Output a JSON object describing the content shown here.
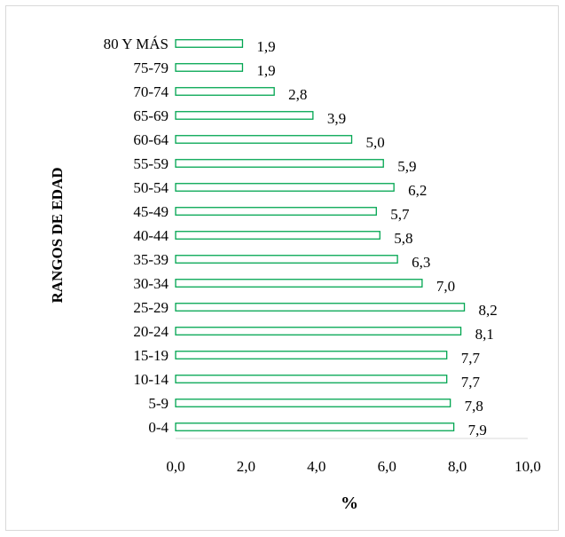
{
  "chart_data": {
    "type": "bar",
    "orientation": "horizontal",
    "title": "",
    "ylabel": "RANGOS DE EDAD",
    "xlabel": "%",
    "xlim": [
      0,
      10
    ],
    "x_ticks": [
      "0,0",
      "2,0",
      "4,0",
      "6,0",
      "8,0",
      "10,0"
    ],
    "grid": false,
    "legend": "none",
    "colors": {
      "bar_edge": "#00a550",
      "bar_fill": "#ffffff",
      "axis": "#d9d9d9",
      "text": "#000000"
    },
    "categories": [
      "80 Y MÁS",
      "75-79",
      "70-74",
      "65-69",
      "60-64",
      "55-59",
      "50-54",
      "45-49",
      "40-44",
      "35-39",
      "30-34",
      "25-29",
      "20-24",
      "15-19",
      "10-14",
      "5-9",
      "0-4"
    ],
    "values": [
      1.9,
      1.9,
      2.8,
      3.9,
      5.0,
      5.9,
      6.2,
      5.7,
      5.8,
      6.3,
      7.0,
      8.2,
      8.1,
      7.7,
      7.7,
      7.8,
      7.9
    ],
    "data_labels": [
      "1,9",
      "1,9",
      "2,8",
      "3,9",
      "5,0",
      "5,9",
      "6,2",
      "5,7",
      "5,8",
      "6,3",
      "7,0",
      "8,2",
      "8,1",
      "7,7",
      "7,7",
      "7,8",
      "7,9"
    ]
  }
}
